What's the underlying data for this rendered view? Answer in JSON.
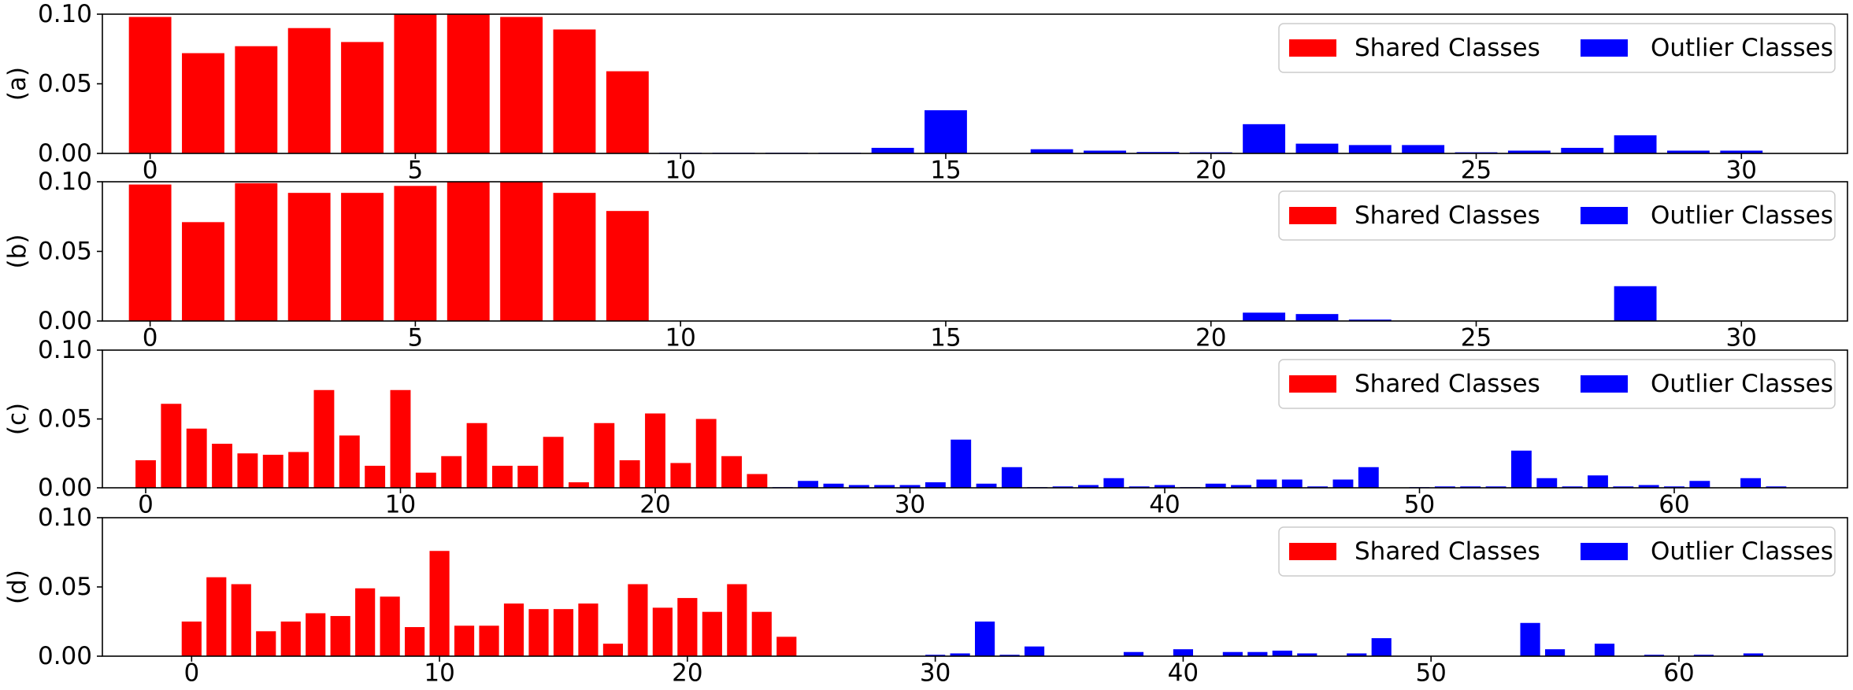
{
  "colors": {
    "shared": "#ff0000",
    "outlier": "#0000ff"
  },
  "legend": {
    "shared_label": "Shared Classes",
    "outlier_label": "Outlier Classes",
    "placement": "upper-right"
  },
  "chart_data": [
    {
      "type": "bar",
      "ylabel": "(a)",
      "xlim": [
        -0.9,
        32.0
      ],
      "ylim": [
        0,
        0.1
      ],
      "xticks": [
        0,
        5,
        10,
        15,
        20,
        25,
        30
      ],
      "yticks": [
        0,
        0.05,
        0.1
      ],
      "ytick_labels": [
        "0.00",
        "0.05",
        "0.10"
      ],
      "series": [
        {
          "name": "Shared Classes",
          "x": [
            0,
            1,
            2,
            3,
            4,
            5,
            6,
            7,
            8,
            9
          ],
          "values": [
            0.098,
            0.072,
            0.077,
            0.09,
            0.08,
            0.1,
            0.1,
            0.098,
            0.089,
            0.059
          ]
        },
        {
          "name": "Outlier Classes",
          "x": [
            10,
            11,
            12,
            13,
            14,
            15,
            16,
            17,
            18,
            19,
            20,
            21,
            22,
            23,
            24,
            25,
            26,
            27,
            28,
            29,
            30
          ],
          "values": [
            0.0005,
            0.0005,
            0.0005,
            0.0005,
            0.004,
            0.031,
            0.0,
            0.003,
            0.002,
            0.001,
            0.0008,
            0.021,
            0.007,
            0.006,
            0.006,
            0.0008,
            0.002,
            0.004,
            0.013,
            0.002,
            0.002
          ]
        }
      ]
    },
    {
      "type": "bar",
      "ylabel": "(b)",
      "xlim": [
        -0.9,
        32.0
      ],
      "ylim": [
        0,
        0.1
      ],
      "xticks": [
        0,
        5,
        10,
        15,
        20,
        25,
        30
      ],
      "yticks": [
        0,
        0.05,
        0.1
      ],
      "ytick_labels": [
        "0.00",
        "0.05",
        "0.10"
      ],
      "series": [
        {
          "name": "Shared Classes",
          "x": [
            0,
            1,
            2,
            3,
            4,
            5,
            6,
            7,
            8,
            9
          ],
          "values": [
            0.098,
            0.071,
            0.099,
            0.092,
            0.092,
            0.097,
            0.1,
            0.1,
            0.092,
            0.079
          ]
        },
        {
          "name": "Outlier Classes",
          "x": [
            10,
            11,
            12,
            13,
            14,
            15,
            16,
            17,
            18,
            19,
            20,
            21,
            22,
            23,
            24,
            25,
            26,
            27,
            28,
            29,
            30
          ],
          "values": [
            0,
            0,
            0,
            0,
            0,
            0,
            0,
            0,
            0,
            0,
            0,
            0.006,
            0.005,
            0.001,
            0,
            0,
            0,
            0,
            0.025,
            0,
            0
          ]
        }
      ]
    },
    {
      "type": "bar",
      "ylabel": "(c)",
      "xlim": [
        -1.7,
        66.8
      ],
      "ylim": [
        0,
        0.1
      ],
      "xticks": [
        0,
        10,
        20,
        30,
        40,
        50,
        60
      ],
      "yticks": [
        0,
        0.05,
        0.1
      ],
      "ytick_labels": [
        "0.00",
        "0.05",
        "0.10"
      ],
      "series": [
        {
          "name": "Shared Classes",
          "x": [
            0,
            1,
            2,
            3,
            4,
            5,
            6,
            7,
            8,
            9,
            10,
            11,
            12,
            13,
            14,
            15,
            16,
            17,
            18,
            19,
            20,
            21,
            22,
            23,
            24
          ],
          "values": [
            0.02,
            0.061,
            0.043,
            0.032,
            0.025,
            0.024,
            0.026,
            0.071,
            0.038,
            0.016,
            0.071,
            0.011,
            0.023,
            0.047,
            0.016,
            0.016,
            0.037,
            0.004,
            0.047,
            0.02,
            0.054,
            0.018,
            0.05,
            0.023,
            0.01
          ]
        },
        {
          "name": "Outlier Classes",
          "x": [
            25,
            26,
            27,
            28,
            29,
            30,
            31,
            32,
            33,
            34,
            35,
            36,
            37,
            38,
            39,
            40,
            41,
            42,
            43,
            44,
            45,
            46,
            47,
            48,
            49,
            50,
            51,
            52,
            53,
            54,
            55,
            56,
            57,
            58,
            59,
            60,
            61,
            62,
            63,
            64
          ],
          "values": [
            0.0005,
            0.005,
            0.003,
            0.002,
            0.002,
            0.002,
            0.004,
            0.035,
            0.003,
            0.015,
            0.0005,
            0.001,
            0.002,
            0.007,
            0.001,
            0.002,
            0.0005,
            0.003,
            0.002,
            0.006,
            0.006,
            0.001,
            0.006,
            0.015,
            0.0,
            0.0005,
            0.001,
            0.001,
            0.001,
            0.027,
            0.007,
            0.001,
            0.009,
            0.001,
            0.002,
            0.001,
            0.005,
            0.0,
            0.007,
            0.001
          ]
        }
      ]
    },
    {
      "type": "bar",
      "ylabel": "(d)",
      "xlim": [
        -3.6,
        66.8
      ],
      "ylim": [
        0,
        0.1
      ],
      "xticks": [
        0,
        10,
        20,
        30,
        40,
        50,
        60
      ],
      "yticks": [
        0,
        0.05,
        0.1
      ],
      "ytick_labels": [
        "0.00",
        "0.05",
        "0.10"
      ],
      "series": [
        {
          "name": "Shared Classes",
          "x": [
            0,
            1,
            2,
            3,
            4,
            5,
            6,
            7,
            8,
            9,
            10,
            11,
            12,
            13,
            14,
            15,
            16,
            17,
            18,
            19,
            20,
            21,
            22,
            23,
            24
          ],
          "values": [
            0.025,
            0.057,
            0.052,
            0.018,
            0.025,
            0.031,
            0.029,
            0.049,
            0.043,
            0.021,
            0.076,
            0.022,
            0.022,
            0.038,
            0.034,
            0.034,
            0.038,
            0.009,
            0.052,
            0.035,
            0.042,
            0.032,
            0.052,
            0.032,
            0.014
          ]
        },
        {
          "name": "Outlier Classes",
          "x": [
            25,
            26,
            27,
            28,
            29,
            30,
            31,
            32,
            33,
            34,
            35,
            36,
            37,
            38,
            39,
            40,
            41,
            42,
            43,
            44,
            45,
            46,
            47,
            48,
            49,
            50,
            51,
            52,
            53,
            54,
            55,
            56,
            57,
            58,
            59,
            60,
            61,
            62,
            63,
            64
          ],
          "values": [
            0,
            0,
            0,
            0,
            0,
            0.001,
            0.002,
            0.025,
            0.001,
            0.007,
            0,
            0,
            0,
            0.003,
            0,
            0.005,
            0,
            0.003,
            0.003,
            0.004,
            0.002,
            0,
            0.002,
            0.013,
            0,
            0,
            0,
            0,
            0,
            0.024,
            0.005,
            0,
            0.009,
            0,
            0.001,
            0,
            0.001,
            0,
            0.002,
            0
          ]
        }
      ]
    }
  ]
}
